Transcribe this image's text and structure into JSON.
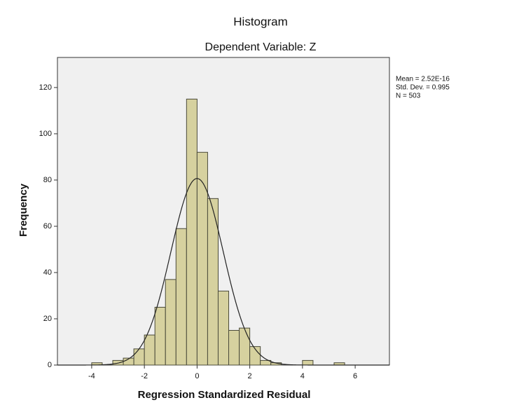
{
  "chart_data": {
    "type": "histogram",
    "title": "Histogram",
    "subtitle": "Dependent Variable: Z",
    "x_label": "Regression Standardized Residual",
    "y_label": "Frequency",
    "annotations": [
      "Mean = 2.52E-16",
      "Std. Dev. = 0.995",
      "N = 503"
    ],
    "bins": [
      -4,
      -3.6,
      -3.2,
      -2.8,
      -2.4,
      -2,
      -1.6,
      -1.2,
      -0.8,
      -0.4,
      0,
      0.4,
      0.8,
      1.2,
      1.6,
      2,
      2.4,
      2.8,
      3.2,
      3.6,
      4,
      4.4,
      4.8,
      5.2,
      5.6
    ],
    "values": [
      1,
      0,
      2,
      3,
      7,
      13,
      25,
      37,
      59,
      115,
      92,
      72,
      32,
      15,
      16,
      8,
      2,
      1,
      0,
      0,
      2,
      0,
      0,
      1
    ],
    "color": "#d6d19f",
    "normal_curve": {
      "mean": 2.52e-16,
      "sd": 0.995,
      "n": 503
    },
    "xlim": [
      -5.3,
      7.3
    ],
    "ylim": [
      0,
      133
    ],
    "xticks": [
      -4,
      -2,
      0,
      2,
      4,
      6
    ],
    "yticks": [
      0,
      20,
      40,
      60,
      80,
      100,
      120
    ]
  }
}
